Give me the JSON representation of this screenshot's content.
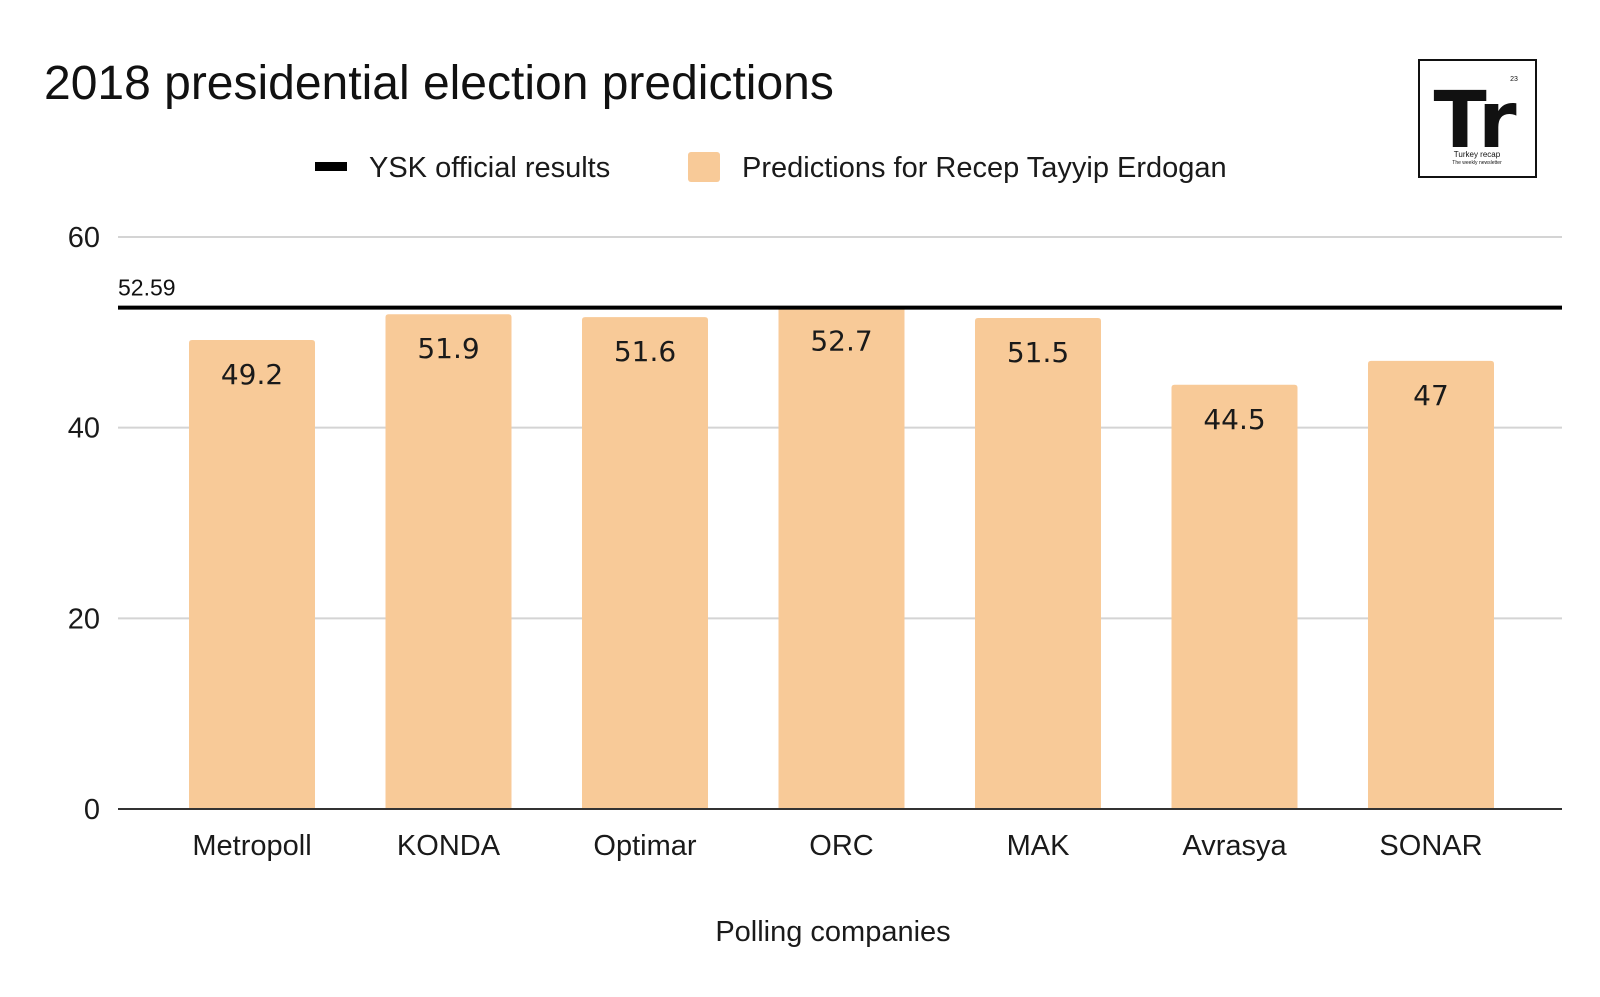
{
  "chart_data": {
    "type": "bar",
    "title": "2018 presidential election predictions",
    "xlabel": "Polling companies",
    "ylabel": "",
    "ylim": [
      0,
      60
    ],
    "yticks": [
      0,
      20,
      40,
      60
    ],
    "grid": true,
    "legend_position": "top-center",
    "categories": [
      "Metropoll",
      "KONDA",
      "Optimar",
      "ORC",
      "MAK",
      "Avrasya",
      "SONAR"
    ],
    "series": [
      {
        "name": "Predictions for Recep Tayyip Erdogan",
        "values": [
          49.2,
          51.9,
          51.6,
          52.7,
          51.5,
          44.5,
          47
        ],
        "labels": [
          "49.2",
          "51.9",
          "51.6",
          "52.7",
          "51.5",
          "44.5",
          "47"
        ],
        "color": "#F8CA98"
      }
    ],
    "reference_line": {
      "name": "YSK official results",
      "value": 52.59,
      "label": "52.59",
      "color": "#000000"
    }
  },
  "logo": {
    "mark": "Tr",
    "number": "23",
    "name": "Turkey recap",
    "tagline": "The weekly newsletter"
  }
}
